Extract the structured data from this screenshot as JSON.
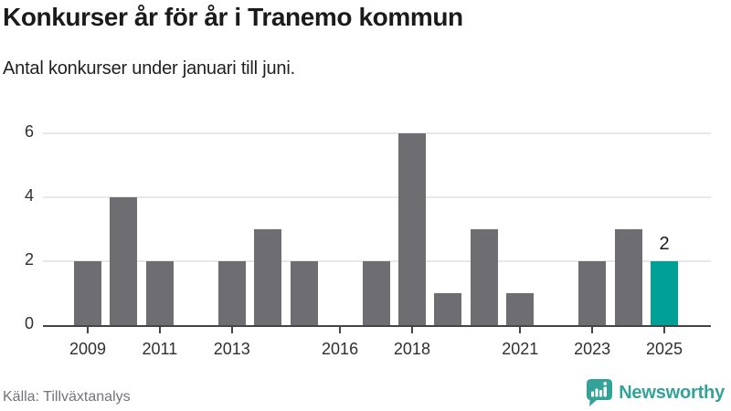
{
  "chart_data": {
    "type": "bar",
    "title": "Konkurser år för år i Tranemo kommun",
    "subtitle": "Antal konkurser under januari till juni.",
    "xlabel": "",
    "ylabel": "",
    "categories": [
      2009,
      2010,
      2011,
      2012,
      2013,
      2014,
      2015,
      2016,
      2017,
      2018,
      2019,
      2020,
      2021,
      2022,
      2023,
      2024,
      2025
    ],
    "values": [
      2,
      4,
      2,
      0,
      2,
      3,
      2,
      0,
      2,
      6,
      1,
      3,
      1,
      0,
      2,
      3,
      2
    ],
    "xticks": [
      "2009",
      "2011",
      "2013",
      "2016",
      "2018",
      "2021",
      "2023",
      "2025"
    ],
    "yticks": [
      0,
      2,
      4,
      6
    ],
    "ylim": [
      0,
      6
    ],
    "grid": "horizontal",
    "legend": "none",
    "highlight": {
      "category": 2025,
      "value": 2,
      "data_label": "2"
    },
    "colors": {
      "bar": "#6d6d72",
      "highlight": "#00a096",
      "gridline": "#e8e8e8",
      "axis": "#454545",
      "tick_text": "#303030"
    }
  },
  "footer": {
    "source": "Källa: Tillväxtanalys",
    "brand": "Newsworthy",
    "brand_color": "#33a39a"
  }
}
